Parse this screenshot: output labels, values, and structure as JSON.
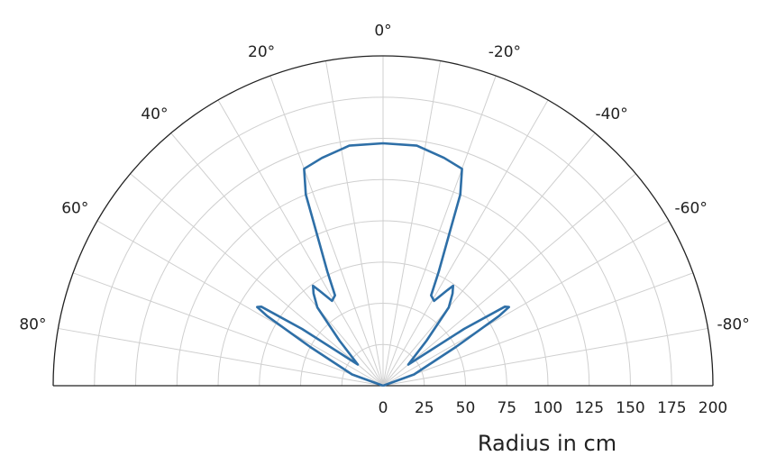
{
  "chart_data": {
    "type": "polar-line",
    "title": "",
    "xlabel": "Radius in cm",
    "ylabel": "",
    "theta_range_deg": [
      -90,
      90
    ],
    "theta_direction": "counterclockwise-positive, 0 at top",
    "r_range": [
      0,
      200
    ],
    "grid": true,
    "angle_ticks": [
      {
        "deg": 0,
        "label": "0°"
      },
      {
        "deg": 20,
        "label": "20°"
      },
      {
        "deg": -20,
        "label": "-20°"
      },
      {
        "deg": 40,
        "label": "40°"
      },
      {
        "deg": -40,
        "label": "-40°"
      },
      {
        "deg": 60,
        "label": "60°"
      },
      {
        "deg": -60,
        "label": "-60°"
      },
      {
        "deg": 80,
        "label": "80°"
      },
      {
        "deg": -80,
        "label": "-80°"
      }
    ],
    "r_ticks": [
      0,
      25,
      50,
      75,
      100,
      125,
      150,
      175,
      200
    ],
    "r_tick_labels": [
      "0",
      "25",
      "50",
      "75",
      "100",
      "125",
      "150",
      "175",
      "200"
    ],
    "grid_angles_deg": [
      -80,
      -70,
      -60,
      -50,
      -40,
      -30,
      -20,
      -10,
      0,
      10,
      20,
      30,
      40,
      50,
      60,
      70,
      80
    ],
    "color": "#2e6fa7",
    "series": [
      {
        "points": [
          {
            "theta": -90,
            "r": 0
          },
          {
            "theta": -70,
            "r": 20
          },
          {
            "theta": -62,
            "r": 50
          },
          {
            "theta": -59,
            "r": 82
          },
          {
            "theta": -58,
            "r": 90
          },
          {
            "theta": -57,
            "r": 88
          },
          {
            "theta": -55,
            "r": 60
          },
          {
            "theta": -50,
            "r": 20
          },
          {
            "theta": -44,
            "r": 38
          },
          {
            "theta": -40,
            "r": 62
          },
          {
            "theta": -37,
            "r": 70
          },
          {
            "theta": -35,
            "r": 74
          },
          {
            "theta": -34,
            "r": 70
          },
          {
            "theta": -31,
            "r": 60
          },
          {
            "theta": -28,
            "r": 62
          },
          {
            "theta": -26,
            "r": 77
          },
          {
            "theta": -23,
            "r": 108
          },
          {
            "theta": -22,
            "r": 125
          },
          {
            "theta": -20,
            "r": 140
          },
          {
            "theta": -15,
            "r": 143
          },
          {
            "theta": -8,
            "r": 147
          },
          {
            "theta": 0,
            "r": 147
          },
          {
            "theta": 8,
            "r": 147
          },
          {
            "theta": 15,
            "r": 143
          },
          {
            "theta": 20,
            "r": 140
          },
          {
            "theta": 22,
            "r": 125
          },
          {
            "theta": 23,
            "r": 108
          },
          {
            "theta": 26,
            "r": 77
          },
          {
            "theta": 28,
            "r": 62
          },
          {
            "theta": 31,
            "r": 60
          },
          {
            "theta": 34,
            "r": 70
          },
          {
            "theta": 35,
            "r": 74
          },
          {
            "theta": 37,
            "r": 70
          },
          {
            "theta": 40,
            "r": 62
          },
          {
            "theta": 44,
            "r": 38
          },
          {
            "theta": 50,
            "r": 20
          },
          {
            "theta": 55,
            "r": 60
          },
          {
            "theta": 57,
            "r": 88
          },
          {
            "theta": 58,
            "r": 90
          },
          {
            "theta": 59,
            "r": 82
          },
          {
            "theta": 62,
            "r": 50
          },
          {
            "theta": 70,
            "r": 20
          },
          {
            "theta": 90,
            "r": 0
          }
        ]
      }
    ]
  }
}
